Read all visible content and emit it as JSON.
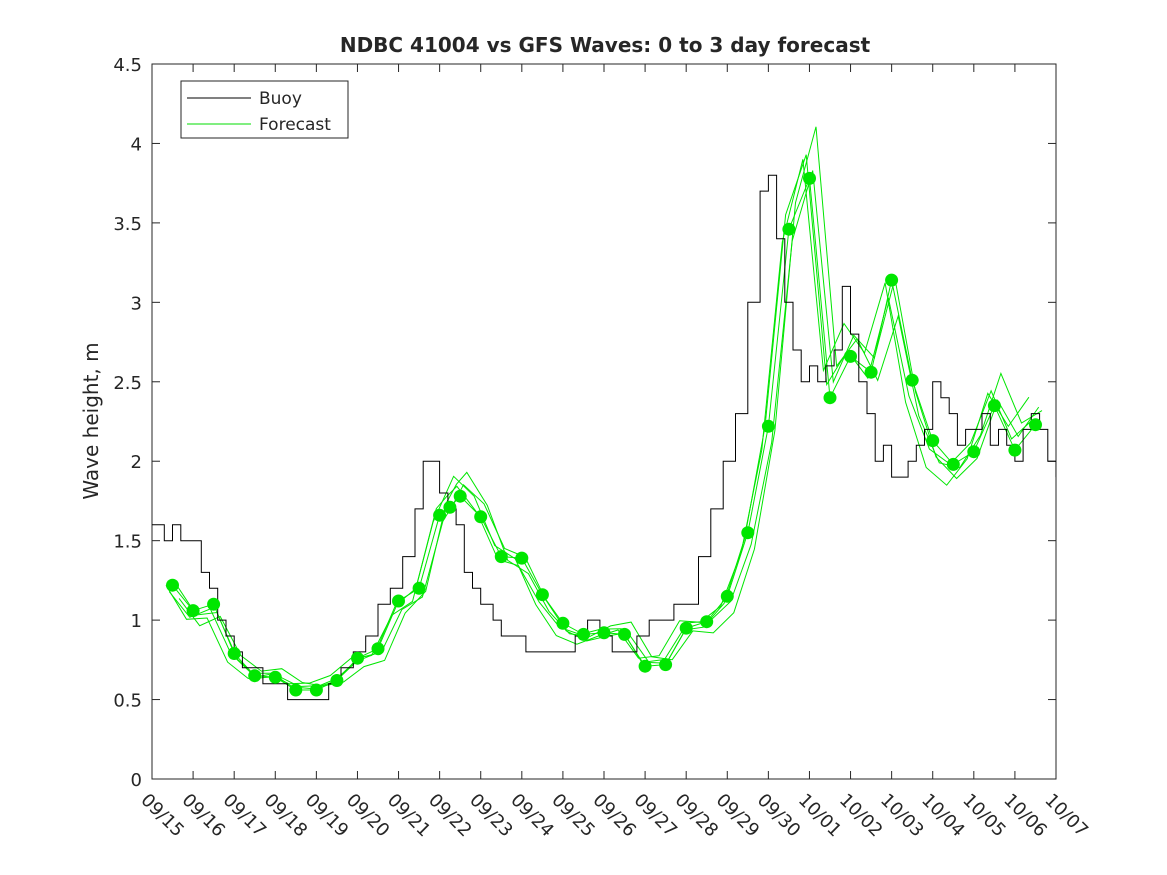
{
  "chart_data": {
    "type": "line",
    "title": "NDBC 41004 vs GFS Waves: 0 to 3 day forecast",
    "xlabel": "",
    "ylabel": "Wave height, m",
    "ylim": [
      0,
      4.5
    ],
    "xlim_days": [
      0,
      22
    ],
    "yticks": [
      0,
      0.5,
      1,
      1.5,
      2,
      2.5,
      3,
      3.5,
      4,
      4.5
    ],
    "ytick_labels": [
      "0",
      "0.5",
      "1",
      "1.5",
      "2",
      "2.5",
      "3",
      "3.5",
      "4",
      "4.5"
    ],
    "xticks": [
      "09/15",
      "09/16",
      "09/17",
      "09/18",
      "09/19",
      "09/20",
      "09/21",
      "09/22",
      "09/23",
      "09/24",
      "09/25",
      "09/26",
      "09/27",
      "09/28",
      "09/29",
      "09/30",
      "10/01",
      "10/02",
      "10/03",
      "10/04",
      "10/05",
      "10/06",
      "10/07"
    ],
    "grid": false,
    "legend_position": "top-left",
    "legend": [
      {
        "label": "Buoy",
        "color": "#000000"
      },
      {
        "label": "Forecast",
        "color": "#00dd00"
      }
    ],
    "colors": {
      "buoy": "#000000",
      "forecast": "#00e600",
      "points": "#00e600"
    },
    "series": [
      {
        "name": "Buoy",
        "x_days": [
          0.0,
          0.3,
          0.5,
          0.7,
          1.0,
          1.2,
          1.4,
          1.6,
          1.8,
          2.0,
          2.2,
          2.4,
          2.7,
          3.0,
          3.3,
          3.6,
          3.9,
          4.1,
          4.3,
          4.6,
          4.9,
          5.2,
          5.5,
          5.8,
          6.1,
          6.4,
          6.6,
          6.9,
          7.0,
          7.2,
          7.4,
          7.6,
          7.8,
          8.0,
          8.3,
          8.5,
          8.8,
          9.1,
          9.4,
          9.7,
          10.0,
          10.3,
          10.6,
          10.9,
          11.2,
          11.5,
          11.8,
          12.1,
          12.4,
          12.7,
          13.0,
          13.3,
          13.6,
          13.9,
          14.2,
          14.5,
          14.8,
          15.0,
          15.2,
          15.4,
          15.6,
          15.8,
          16.0,
          16.2,
          16.4,
          16.6,
          16.8,
          17.0,
          17.2,
          17.4,
          17.6,
          17.8,
          18.0,
          18.2,
          18.4,
          18.6,
          18.8,
          19.0,
          19.2,
          19.4,
          19.6,
          19.8,
          20.0,
          20.2,
          20.4,
          20.6,
          20.8,
          21.0,
          21.2,
          21.4,
          21.6,
          21.8,
          22.0
        ],
        "values": [
          1.6,
          1.5,
          1.6,
          1.5,
          1.5,
          1.3,
          1.2,
          1.0,
          0.9,
          0.8,
          0.7,
          0.7,
          0.6,
          0.6,
          0.5,
          0.5,
          0.5,
          0.5,
          0.6,
          0.7,
          0.8,
          0.9,
          1.1,
          1.2,
          1.4,
          1.7,
          2.0,
          2.0,
          1.8,
          1.7,
          1.6,
          1.3,
          1.2,
          1.1,
          1.0,
          0.9,
          0.9,
          0.8,
          0.8,
          0.8,
          0.8,
          0.9,
          1.0,
          0.9,
          0.8,
          0.8,
          0.9,
          1.0,
          1.0,
          1.1,
          1.1,
          1.4,
          1.7,
          2.0,
          2.3,
          3.0,
          3.7,
          3.8,
          3.4,
          3.0,
          2.7,
          2.5,
          2.6,
          2.5,
          2.6,
          2.7,
          3.1,
          2.8,
          2.5,
          2.3,
          2.0,
          2.1,
          1.9,
          1.9,
          2.0,
          2.1,
          2.2,
          2.5,
          2.4,
          2.3,
          2.1,
          2.2,
          2.2,
          2.3,
          2.1,
          2.2,
          2.1,
          2.0,
          2.2,
          2.3,
          2.2,
          2.0,
          1.9
        ]
      },
      {
        "name": "Forecast",
        "x_days": [
          0.5,
          1.0,
          1.5,
          2.0,
          2.5,
          3.0,
          3.5,
          4.0,
          4.5,
          5.0,
          5.5,
          6.0,
          6.5,
          7.0,
          7.25,
          7.5,
          8.0,
          8.5,
          9.0,
          9.5,
          10.0,
          10.5,
          11.0,
          11.5,
          12.0,
          12.5,
          13.0,
          13.5,
          14.0,
          14.5,
          15.0,
          15.5,
          16.0,
          16.5,
          17.0,
          17.5,
          18.0,
          18.5,
          19.0,
          19.5,
          20.0,
          20.5,
          21.0,
          21.5
        ],
        "values": [
          1.22,
          1.06,
          1.1,
          0.79,
          0.65,
          0.64,
          0.56,
          0.56,
          0.62,
          0.76,
          0.82,
          1.12,
          1.2,
          1.66,
          1.71,
          1.78,
          1.65,
          1.4,
          1.39,
          1.16,
          0.98,
          0.91,
          0.92,
          0.91,
          0.71,
          0.72,
          0.95,
          0.99,
          1.15,
          1.55,
          2.22,
          3.46,
          3.78,
          2.4,
          2.66,
          2.56,
          3.14,
          2.51,
          2.13,
          1.98,
          2.06,
          2.35,
          2.07,
          2.23
        ]
      }
    ]
  }
}
